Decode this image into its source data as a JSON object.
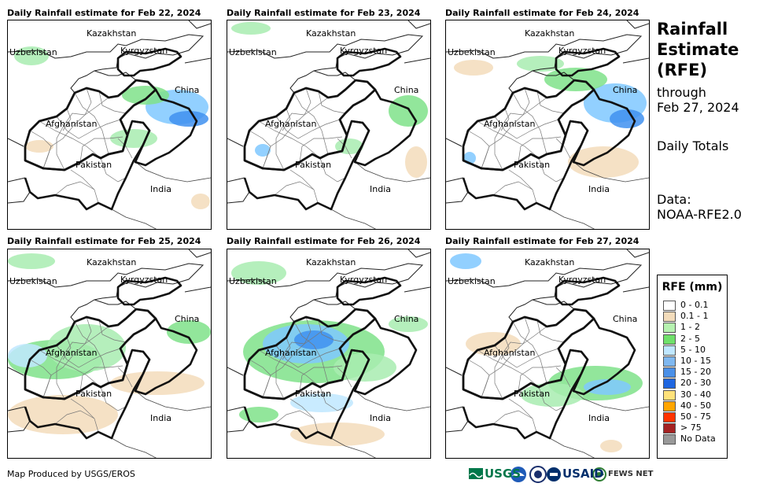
{
  "panels": [
    {
      "title": "Daily Rainfall estimate for Feb 22, 2024",
      "rain": [
        {
          "x": 30,
          "y": 45,
          "rx": 22,
          "ry": 12,
          "c": "#a8ecb0"
        },
        {
          "x": 215,
          "y": 110,
          "rx": 40,
          "ry": 22,
          "c": "#7fc8ff"
        },
        {
          "x": 230,
          "y": 125,
          "rx": 25,
          "ry": 10,
          "c": "#3f90f0"
        },
        {
          "x": 175,
          "y": 95,
          "rx": 30,
          "ry": 12,
          "c": "#7fe28a"
        },
        {
          "x": 160,
          "y": 150,
          "rx": 30,
          "ry": 12,
          "c": "#a8ecb0"
        },
        {
          "x": 40,
          "y": 160,
          "rx": 18,
          "ry": 8,
          "c": "#f3dcbb"
        },
        {
          "x": 245,
          "y": 230,
          "rx": 12,
          "ry": 10,
          "c": "#f3dcbb"
        }
      ]
    },
    {
      "title": "Daily Rainfall estimate for Feb 23, 2024",
      "rain": [
        {
          "x": 30,
          "y": 10,
          "rx": 25,
          "ry": 8,
          "c": "#a8ecb0"
        },
        {
          "x": 230,
          "y": 115,
          "rx": 25,
          "ry": 20,
          "c": "#7fe28a"
        },
        {
          "x": 155,
          "y": 160,
          "rx": 18,
          "ry": 10,
          "c": "#a8ecb0"
        },
        {
          "x": 45,
          "y": 165,
          "rx": 10,
          "ry": 8,
          "c": "#7fc8ff"
        },
        {
          "x": 240,
          "y": 180,
          "rx": 14,
          "ry": 20,
          "c": "#f3dcbb"
        }
      ]
    },
    {
      "title": "Daily Rainfall estimate for Feb 24, 2024",
      "rain": [
        {
          "x": 215,
          "y": 105,
          "rx": 40,
          "ry": 25,
          "c": "#7fc8ff"
        },
        {
          "x": 230,
          "y": 125,
          "rx": 22,
          "ry": 12,
          "c": "#3f90f0"
        },
        {
          "x": 165,
          "y": 75,
          "rx": 40,
          "ry": 15,
          "c": "#7fe28a"
        },
        {
          "x": 120,
          "y": 55,
          "rx": 30,
          "ry": 10,
          "c": "#a8ecb0"
        },
        {
          "x": 35,
          "y": 60,
          "rx": 25,
          "ry": 10,
          "c": "#f3dcbb"
        },
        {
          "x": 200,
          "y": 180,
          "rx": 45,
          "ry": 20,
          "c": "#f3dcbb"
        },
        {
          "x": 30,
          "y": 175,
          "rx": 8,
          "ry": 8,
          "c": "#7fc8ff"
        }
      ]
    },
    {
      "title": "Daily Rainfall estimate for Feb 25, 2024",
      "rain": [
        {
          "x": 60,
          "y": 140,
          "rx": 60,
          "ry": 25,
          "c": "#7fe28a"
        },
        {
          "x": 100,
          "y": 125,
          "rx": 50,
          "ry": 30,
          "c": "#a8ecb0"
        },
        {
          "x": 25,
          "y": 135,
          "rx": 25,
          "ry": 15,
          "c": "#bfe7ff"
        },
        {
          "x": 230,
          "y": 105,
          "rx": 28,
          "ry": 15,
          "c": "#7fe28a"
        },
        {
          "x": 70,
          "y": 210,
          "rx": 70,
          "ry": 25,
          "c": "#f3dcbb"
        },
        {
          "x": 190,
          "y": 170,
          "rx": 60,
          "ry": 15,
          "c": "#f3dcbb"
        },
        {
          "x": 30,
          "y": 15,
          "rx": 30,
          "ry": 10,
          "c": "#a8ecb0"
        }
      ]
    },
    {
      "title": "Daily Rainfall estimate for Feb 26, 2024",
      "rain": [
        {
          "x": 110,
          "y": 130,
          "rx": 90,
          "ry": 40,
          "c": "#7fe28a"
        },
        {
          "x": 100,
          "y": 120,
          "rx": 55,
          "ry": 25,
          "c": "#7fc8ff"
        },
        {
          "x": 110,
          "y": 115,
          "rx": 25,
          "ry": 12,
          "c": "#3f90f0"
        },
        {
          "x": 175,
          "y": 150,
          "rx": 40,
          "ry": 18,
          "c": "#a8ecb0"
        },
        {
          "x": 40,
          "y": 210,
          "rx": 25,
          "ry": 10,
          "c": "#7fe28a"
        },
        {
          "x": 120,
          "y": 195,
          "rx": 40,
          "ry": 12,
          "c": "#bfe7ff"
        },
        {
          "x": 40,
          "y": 30,
          "rx": 35,
          "ry": 15,
          "c": "#a8ecb0"
        },
        {
          "x": 230,
          "y": 95,
          "rx": 25,
          "ry": 10,
          "c": "#a8ecb0"
        },
        {
          "x": 140,
          "y": 235,
          "rx": 60,
          "ry": 15,
          "c": "#f3dcbb"
        }
      ]
    },
    {
      "title": "Daily Rainfall estimate for Feb 27, 2024",
      "rain": [
        {
          "x": 190,
          "y": 170,
          "rx": 60,
          "ry": 22,
          "c": "#7fe28a"
        },
        {
          "x": 205,
          "y": 175,
          "rx": 30,
          "ry": 10,
          "c": "#7fc8ff"
        },
        {
          "x": 135,
          "y": 185,
          "rx": 40,
          "ry": 15,
          "c": "#a8ecb0"
        },
        {
          "x": 25,
          "y": 15,
          "rx": 20,
          "ry": 10,
          "c": "#7fc8ff"
        },
        {
          "x": 210,
          "y": 250,
          "rx": 14,
          "ry": 8,
          "c": "#f3dcbb"
        },
        {
          "x": 60,
          "y": 120,
          "rx": 35,
          "ry": 15,
          "c": "#f3dcbb"
        }
      ]
    }
  ],
  "map_labels": {
    "kazakhstan": "Kazakhstan",
    "uzbekistan": "Uzbekistan",
    "kyrgyzstan": "Kyrgyzstan",
    "china": "China",
    "afghanistan": "Afghanistan",
    "pakistan": "Pakistan",
    "india": "India"
  },
  "side": {
    "title_line1": "Rainfall",
    "title_line2": "Estimate",
    "title_line3": "(RFE)",
    "through": "through",
    "through_date": "Feb 27, 2024",
    "totals": "Daily Totals",
    "data_label": "Data:",
    "data_source": "NOAA-RFE2.0"
  },
  "legend": {
    "title": "RFE (mm)",
    "items": [
      {
        "label": "0 - 0.1",
        "color": "#ffffff"
      },
      {
        "label": "0.1 - 1",
        "color": "#f3dcbb"
      },
      {
        "label": "1 - 2",
        "color": "#b6f2b0"
      },
      {
        "label": "2 - 5",
        "color": "#6fe06a"
      },
      {
        "label": "5 - 10",
        "color": "#bfe7ff"
      },
      {
        "label": "10 - 15",
        "color": "#7fb8f0"
      },
      {
        "label": "15 - 20",
        "color": "#4a90e8"
      },
      {
        "label": "20 - 30",
        "color": "#1f66e0"
      },
      {
        "label": "30 - 40",
        "color": "#ffe27a"
      },
      {
        "label": "40 - 50",
        "color": "#ffa500"
      },
      {
        "label": "50 - 75",
        "color": "#ff3300"
      },
      {
        "label": "> 75",
        "color": "#a52222"
      },
      {
        "label": "No Data",
        "color": "#999999"
      }
    ]
  },
  "footer": {
    "credit": "Map Produced by USGS/EROS",
    "usgs": "USGS",
    "usaid": "USAID",
    "fewsnet": "FEWS NET"
  }
}
